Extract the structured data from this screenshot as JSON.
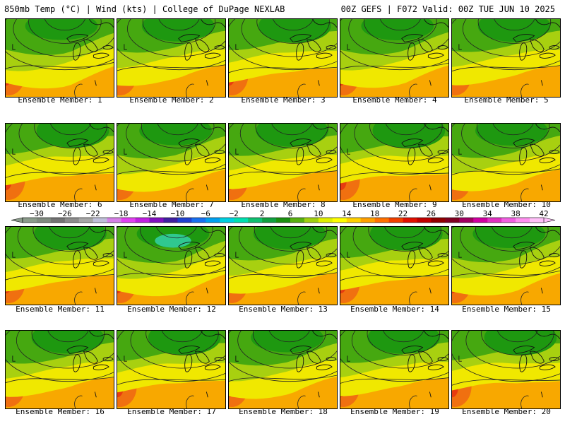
{
  "header": {
    "left": "850mb Temp (°C) | Wind (kts) | College of DuPage NEXLAB",
    "right": "00Z GEFS | F072 Valid: 00Z TUE JUN 10 2025"
  },
  "panels": [
    {
      "label": "Ensemble Member: 1"
    },
    {
      "label": "Ensemble Member: 2"
    },
    {
      "label": "Ensemble Member: 3"
    },
    {
      "label": "Ensemble Member: 4"
    },
    {
      "label": "Ensemble Member: 5"
    },
    {
      "label": "Ensemble Member: 6"
    },
    {
      "label": "Ensemble Member: 7"
    },
    {
      "label": "Ensemble Member: 8"
    },
    {
      "label": "Ensemble Member: 9"
    },
    {
      "label": "Ensemble Member: 10"
    },
    {
      "label": "Ensemble Member: 11"
    },
    {
      "label": "Ensemble Member: 12"
    },
    {
      "label": "Ensemble Member: 13"
    },
    {
      "label": "Ensemble Member: 14"
    },
    {
      "label": "Ensemble Member: 15"
    },
    {
      "label": "Ensemble Member: 16"
    },
    {
      "label": "Ensemble Member: 17"
    },
    {
      "label": "Ensemble Member: 18"
    },
    {
      "label": "Ensemble Member: 19"
    },
    {
      "label": "Ensemble Member: 20"
    }
  ],
  "colorbar": {
    "tick_labels": [
      "−30",
      "−26",
      "−22",
      "−18",
      "−14",
      "−10",
      "−6",
      "−2",
      "2",
      "6",
      "10",
      "14",
      "18",
      "22",
      "26",
      "30",
      "34",
      "38",
      "42"
    ],
    "colors": [
      "#8b9b8b",
      "#7f8a7f",
      "#737373",
      "#8c8c8c",
      "#a6a6a6",
      "#bfbfd9",
      "#d580e6",
      "#e040f0",
      "#c020e0",
      "#8010c0",
      "#4020a0",
      "#2040d0",
      "#1870f0",
      "#00a0f0",
      "#00d0e0",
      "#00e0b0",
      "#10c070",
      "#10a040",
      "#1a9010",
      "#58b010",
      "#a0d010",
      "#e0f000",
      "#ffff00",
      "#ffd000",
      "#ffa000",
      "#ff7000",
      "#f04000",
      "#e01000",
      "#c00000",
      "#900000",
      "#800020",
      "#a00060",
      "#d000a0",
      "#e030c0",
      "#f060e0",
      "#ff90f0",
      "#ffc0f8"
    ]
  },
  "palette": {
    "cool": "#1e9810",
    "green": "#46a810",
    "lime": "#a8d010",
    "yellow": "#f0e800",
    "orange": "#f8a800",
    "warm": "#f07010",
    "hot": "#e83c10",
    "teal": "#30c890"
  }
}
